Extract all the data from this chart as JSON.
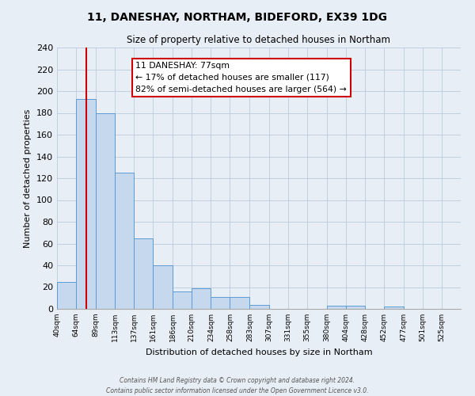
{
  "title": "11, DANESHAY, NORTHAM, BIDEFORD, EX39 1DG",
  "subtitle": "Size of property relative to detached houses in Northam",
  "xlabel": "Distribution of detached houses by size in Northam",
  "ylabel": "Number of detached properties",
  "bin_labels": [
    "40sqm",
    "64sqm",
    "89sqm",
    "113sqm",
    "137sqm",
    "161sqm",
    "186sqm",
    "210sqm",
    "234sqm",
    "258sqm",
    "283sqm",
    "307sqm",
    "331sqm",
    "355sqm",
    "380sqm",
    "404sqm",
    "428sqm",
    "452sqm",
    "477sqm",
    "501sqm",
    "525sqm"
  ],
  "bin_edges": [
    40,
    64,
    89,
    113,
    137,
    161,
    186,
    210,
    234,
    258,
    283,
    307,
    331,
    355,
    380,
    404,
    428,
    452,
    477,
    501,
    525,
    549
  ],
  "bar_heights": [
    25,
    193,
    180,
    125,
    65,
    40,
    16,
    19,
    11,
    11,
    4,
    0,
    0,
    0,
    3,
    3,
    0,
    2,
    0,
    0,
    0
  ],
  "bar_color": "#c5d8ed",
  "bar_edge_color": "#5b9bd5",
  "property_size": 77,
  "red_line_color": "#cc0000",
  "annotation_line1": "11 DANESHAY: 77sqm",
  "annotation_line2": "← 17% of detached houses are smaller (117)",
  "annotation_line3": "82% of semi-detached houses are larger (564) →",
  "annotation_box_color": "#ffffff",
  "annotation_box_edge": "#cc0000",
  "ylim": [
    0,
    240
  ],
  "yticks": [
    0,
    20,
    40,
    60,
    80,
    100,
    120,
    140,
    160,
    180,
    200,
    220,
    240
  ],
  "grid_color": "#c0cfdf",
  "bg_color": "#e8eef5",
  "footer_line1": "Contains HM Land Registry data © Crown copyright and database right 2024.",
  "footer_line2": "Contains public sector information licensed under the Open Government Licence v3.0."
}
